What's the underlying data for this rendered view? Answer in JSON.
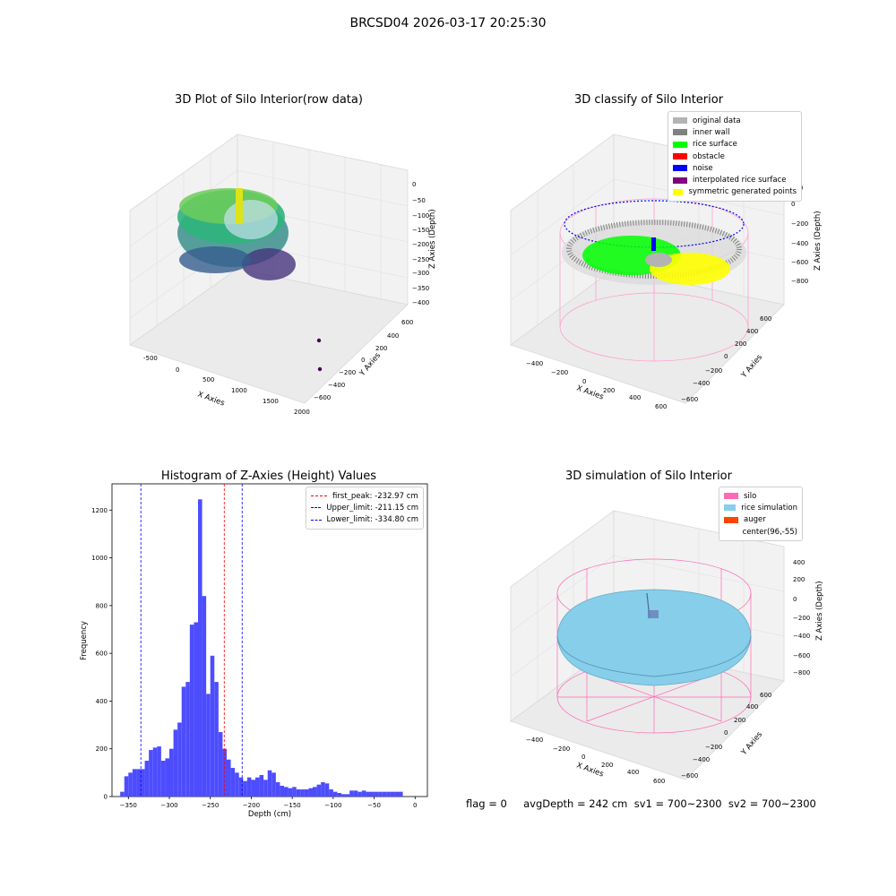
{
  "suptitle": "BRCSD04 2026-03-17 20:25:30",
  "panels": {
    "raw": {
      "title": "3D Plot of Silo Interior(row data)",
      "xlabel": "X Axies",
      "ylabel": "Y Axies",
      "zlabel": "Z Axies (Depth)",
      "xticks": [
        "-500",
        "0",
        "500",
        "1000",
        "1500",
        "2000"
      ],
      "yticks": [
        "600",
        "400",
        "200",
        "0",
        "−200",
        "−400",
        "−600"
      ],
      "zticks": [
        "0",
        "−50",
        "−100",
        "−150",
        "−200",
        "−250",
        "−300",
        "−350",
        "−400"
      ]
    },
    "classify": {
      "title": "3D classify of Silo Interior",
      "xlabel": "X Axies",
      "ylabel": "Y Axies",
      "zlabel": "Z Axies (Depth)",
      "xticks": [
        "−400",
        "−200",
        "0",
        "200",
        "400",
        "600"
      ],
      "yticks": [
        "600",
        "400",
        "200",
        "0",
        "−200",
        "−400",
        "−600"
      ],
      "zticks": [
        "200",
        "0",
        "−200",
        "−400",
        "−600",
        "−800"
      ],
      "legend": [
        {
          "label": "original data",
          "color": "#b3b3b3"
        },
        {
          "label": "inner wall",
          "color": "#808080"
        },
        {
          "label": "rice surface",
          "color": "#00ff00"
        },
        {
          "label": "obstacle",
          "color": "#ff0000"
        },
        {
          "label": "noise",
          "color": "#0000ff"
        },
        {
          "label": "interpolated rice surface",
          "color": "#800080"
        },
        {
          "label": "symmetric generated points",
          "color": "#ffff00"
        }
      ]
    },
    "simulation": {
      "title": "3D simulation of Silo Interior",
      "xlabel": "X Axies",
      "ylabel": "Y Axies",
      "zlabel": "Z Axies (Depth)",
      "xticks": [
        "−400",
        "−200",
        "0",
        "200",
        "400",
        "600"
      ],
      "yticks": [
        "600",
        "400",
        "200",
        "0",
        "−200",
        "−400",
        "−600"
      ],
      "zticks": [
        "400",
        "200",
        "0",
        "−200",
        "−400",
        "−600",
        "−800"
      ],
      "legend": [
        {
          "label": "silo",
          "color": "#ff69b4"
        },
        {
          "label": "rice simulation",
          "color": "#87ceeb"
        },
        {
          "label": "auger",
          "color": "#ff4500"
        },
        {
          "label": "center(96,-55)",
          "color": "#ffffff"
        }
      ]
    }
  },
  "chart_data": {
    "type": "bar",
    "title": "Histogram of Z-Axies (Height) Values",
    "xlabel": "Depth (cm)",
    "ylabel": "Frequency",
    "xlim": [
      -370,
      15
    ],
    "ylim": [
      0,
      1310
    ],
    "xticks": [
      -350,
      -300,
      -250,
      -200,
      -150,
      -100,
      -50,
      0
    ],
    "yticks": [
      0,
      200,
      400,
      600,
      800,
      1000,
      1200
    ],
    "bin_width": 5,
    "bin_starts": [
      -360,
      -355,
      -350,
      -345,
      -340,
      -335,
      -330,
      -325,
      -320,
      -315,
      -310,
      -305,
      -300,
      -295,
      -290,
      -285,
      -280,
      -275,
      -270,
      -265,
      -260,
      -255,
      -250,
      -245,
      -240,
      -235,
      -230,
      -225,
      -220,
      -215,
      -210,
      -205,
      -200,
      -195,
      -190,
      -185,
      -180,
      -175,
      -170,
      -165,
      -160,
      -155,
      -150,
      -145,
      -140,
      -135,
      -130,
      -125,
      -120,
      -115,
      -110,
      -105,
      -100,
      -95,
      -90,
      -85,
      -80,
      -75,
      -70,
      -65,
      -60,
      -55,
      -50,
      -45,
      -40,
      -35,
      -30,
      -25,
      -20
    ],
    "values": [
      20,
      85,
      100,
      115,
      115,
      115,
      150,
      195,
      205,
      210,
      150,
      160,
      200,
      280,
      310,
      460,
      480,
      720,
      730,
      1245,
      840,
      430,
      590,
      480,
      270,
      200,
      155,
      120,
      100,
      80,
      65,
      80,
      70,
      80,
      90,
      70,
      110,
      100,
      60,
      45,
      40,
      35,
      40,
      30,
      30,
      30,
      35,
      40,
      50,
      60,
      55,
      30,
      20,
      15,
      10,
      10,
      25,
      25,
      20,
      25,
      20,
      20,
      20,
      20,
      20,
      20,
      20,
      20,
      20
    ],
    "reference_lines": [
      {
        "label": "first_peak: -232.97 cm",
        "value": -232.97,
        "color": "#ff0000"
      },
      {
        "label": "Upper_limit: -211.15 cm",
        "value": -211.15,
        "color": "#0000ff"
      },
      {
        "label": "Lower_limit: -334.80 cm",
        "value": -334.8,
        "color": "#0000ff"
      }
    ],
    "bar_color": "#4d4dff"
  },
  "footer": "flag = 0     avgDepth = 242 cm  sv1 = 700~2300  sv2 = 700~2300"
}
